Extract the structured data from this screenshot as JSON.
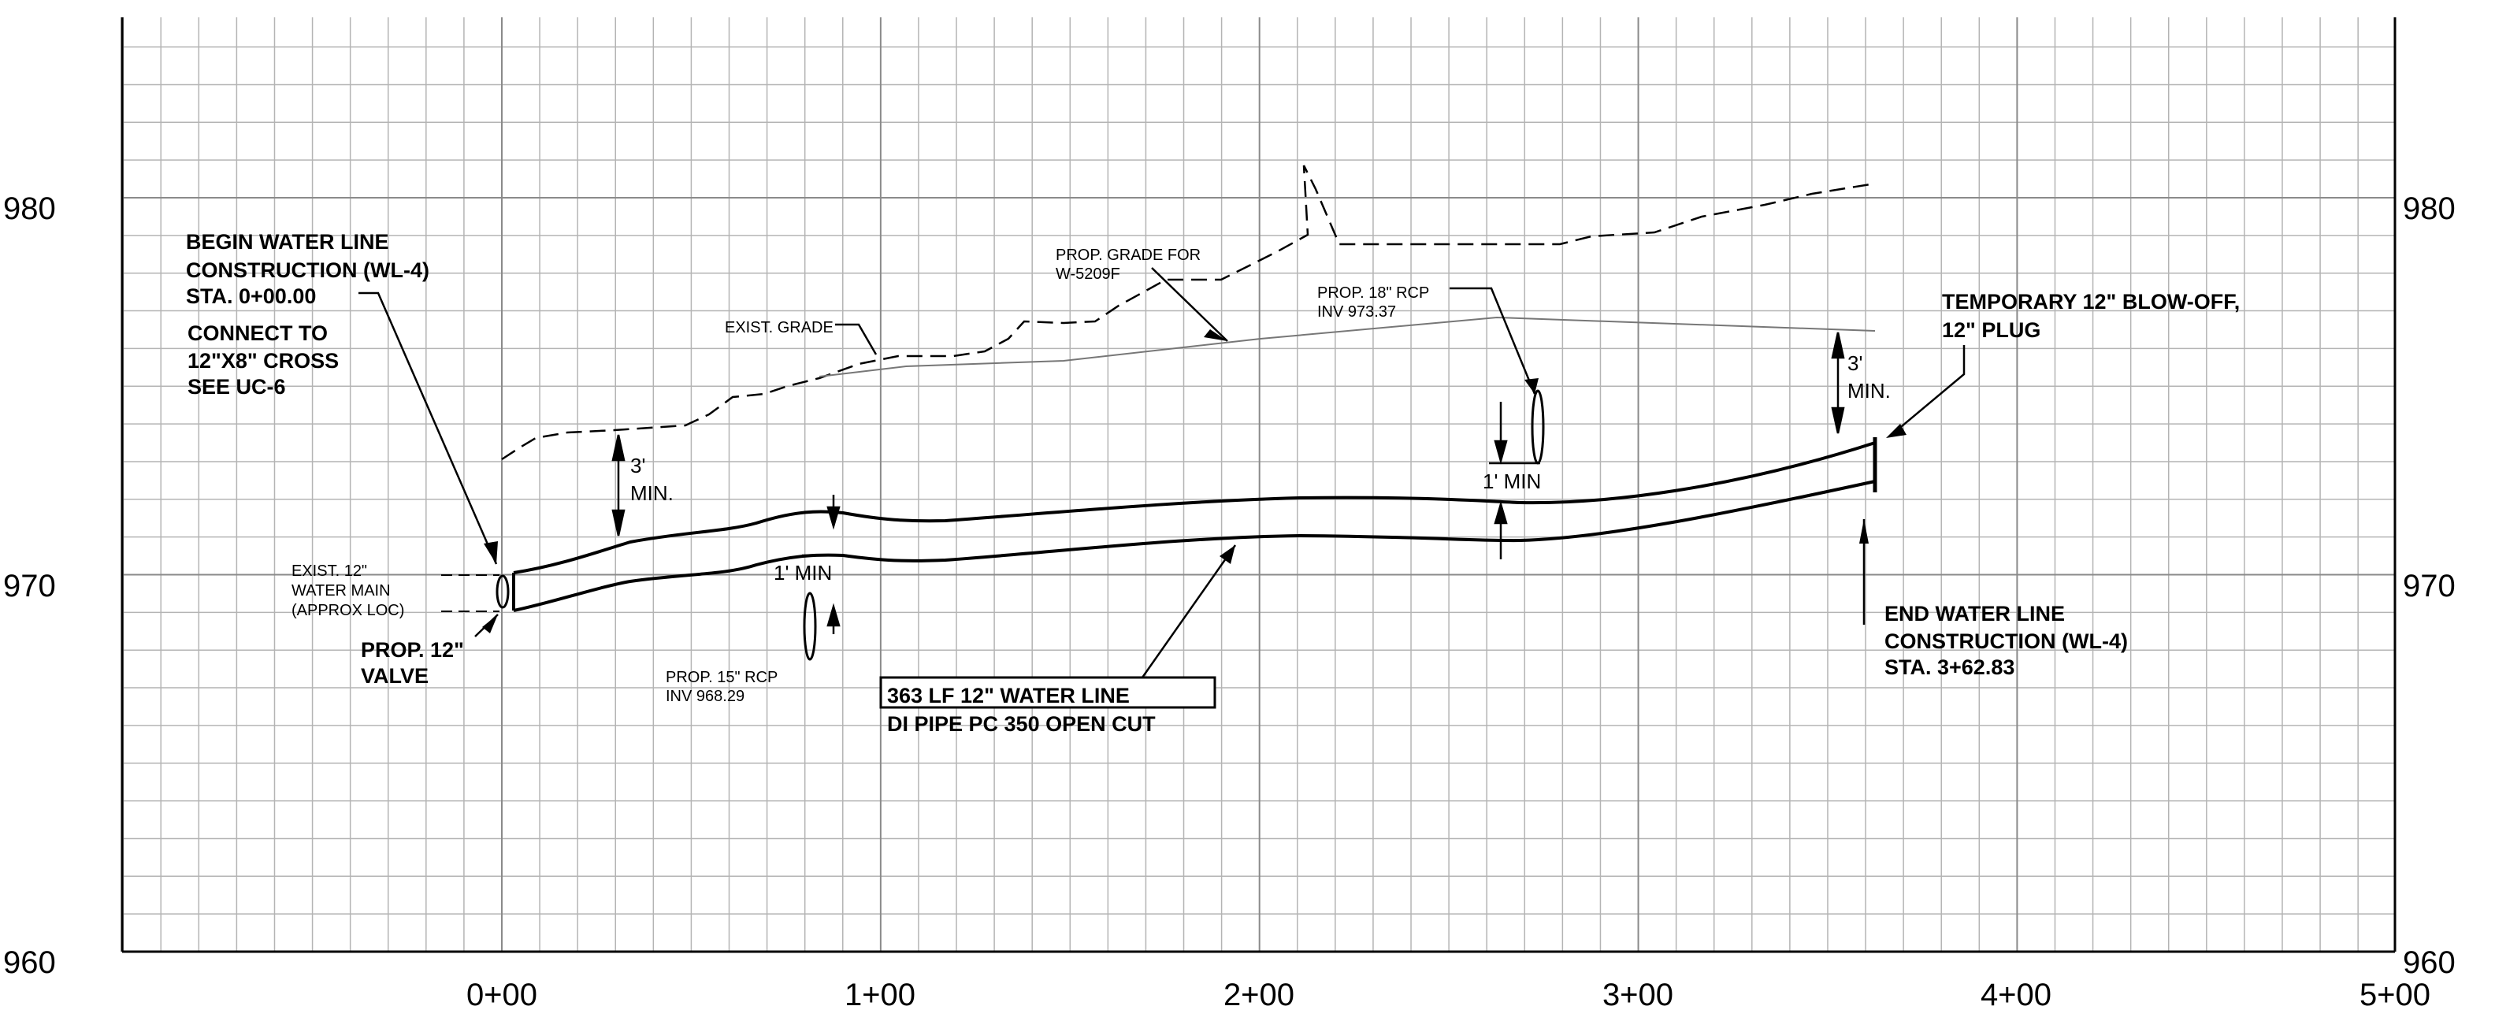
{
  "axes": {
    "elevation_labels": [
      "960",
      "970",
      "980"
    ],
    "station_labels": [
      "0+00",
      "1+00",
      "2+00",
      "3+00",
      "4+00",
      "5+00"
    ]
  },
  "notes": {
    "begin": [
      "BEGIN WATER LINE",
      "CONSTRUCTION (WL-4)",
      "STA. 0+00.00"
    ],
    "connect": [
      "CONNECT TO",
      "12\"X8\" CROSS",
      "SEE UC-6"
    ],
    "exist_main": [
      "EXIST. 12\"",
      "WATER MAIN",
      "(APPROX LOC)"
    ],
    "valve": [
      "PROP. 12\"",
      "VALVE"
    ],
    "exist_grade": "EXIST. GRADE",
    "prop_grade": [
      "PROP. GRADE FOR",
      "W-5209F"
    ],
    "rcp18": [
      "PROP. 18\" RCP",
      "INV 973.37"
    ],
    "rcp15": [
      "PROP. 15\" RCP",
      "INV 968.29"
    ],
    "blowoff": [
      "TEMPORARY 12\" BLOW-OFF,",
      "12\" PLUG"
    ],
    "end": [
      "END WATER LINE",
      "CONSTRUCTION (WL-4)",
      "STA. 3+62.83"
    ],
    "pipe_box": [
      "363 LF 12\" WATER LINE",
      "DI PIPE PC 350 OPEN CUT"
    ]
  },
  "dims": {
    "cover_left": [
      "3'",
      "MIN."
    ],
    "cover_right": [
      "3'",
      "MIN."
    ],
    "sep_15": "1' MIN",
    "sep_18": "1' MIN"
  }
}
